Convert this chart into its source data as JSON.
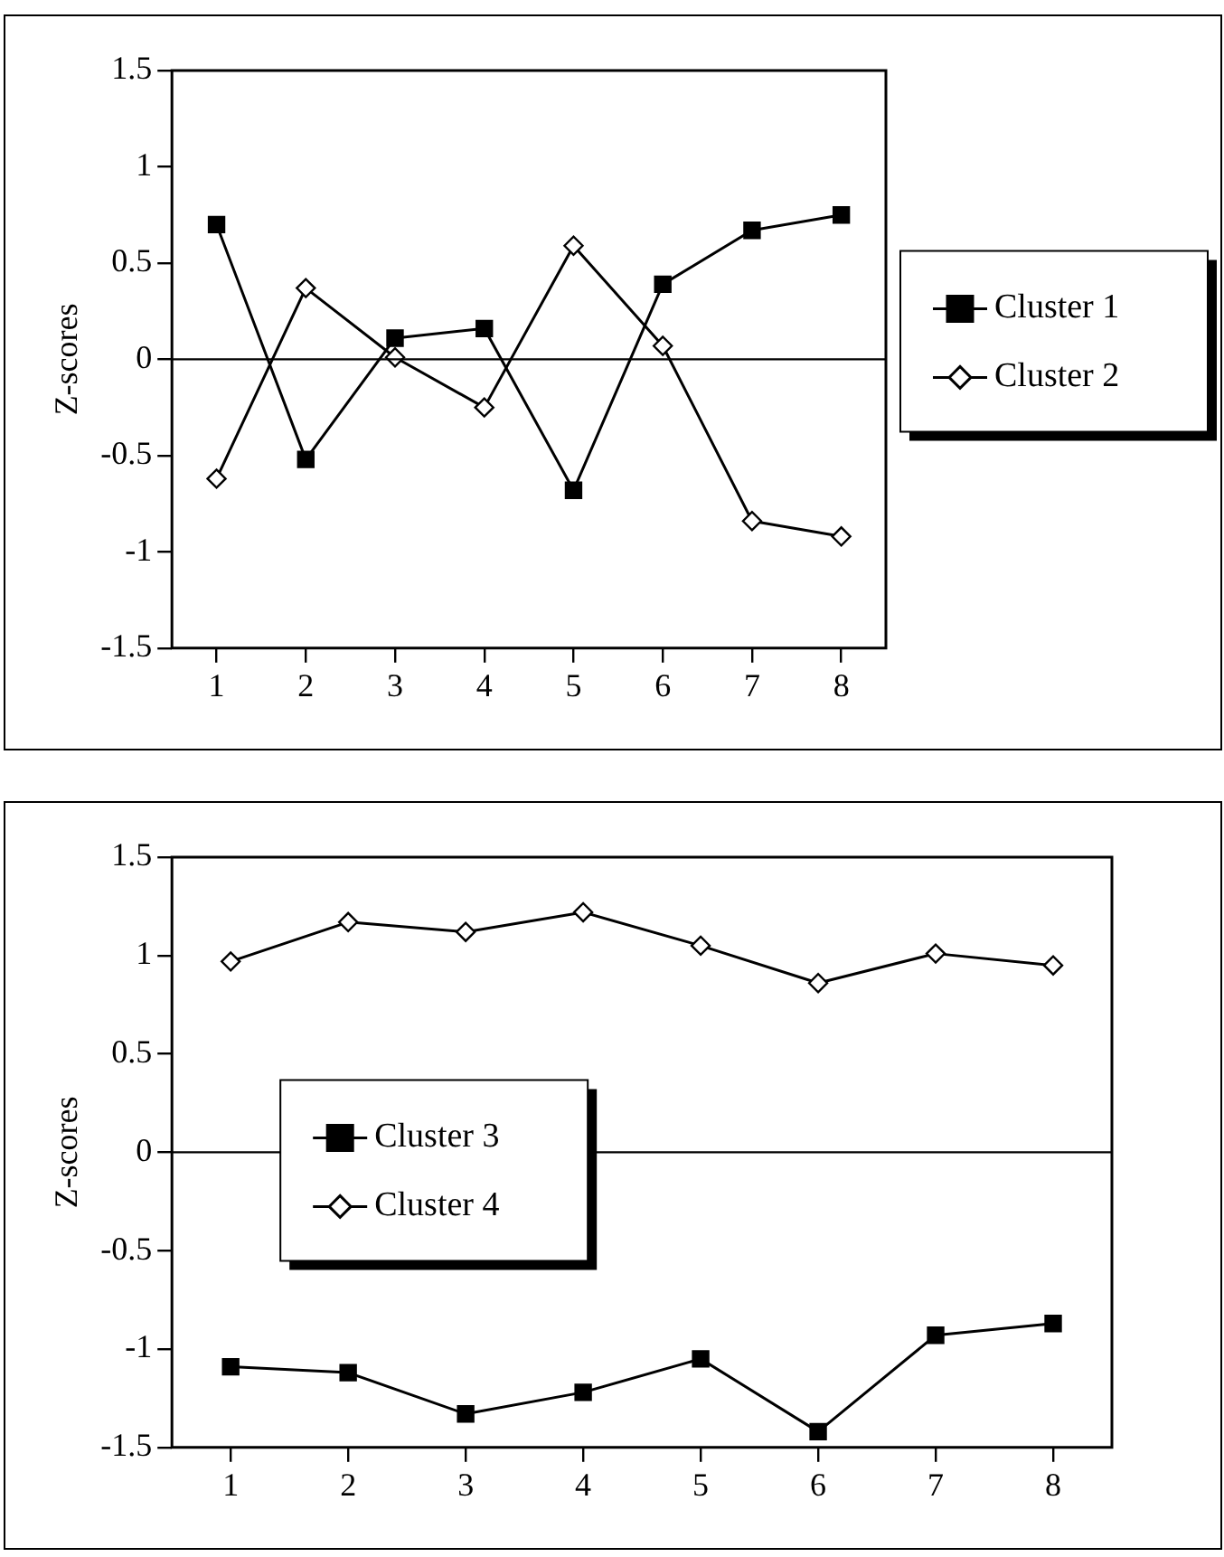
{
  "chart_data": [
    {
      "type": "line",
      "ylabel": "Z-scores",
      "categories": [
        "1",
        "2",
        "3",
        "4",
        "5",
        "6",
        "7",
        "8"
      ],
      "series": [
        {
          "name": "Cluster 1",
          "color": "#000000",
          "marker": "square",
          "values": [
            0.7,
            -0.52,
            0.11,
            0.16,
            -0.68,
            0.39,
            0.67,
            0.75
          ]
        },
        {
          "name": "Cluster 2",
          "color": "#000000",
          "marker": "diamond",
          "values": [
            -0.62,
            0.37,
            0.01,
            -0.25,
            0.59,
            0.07,
            -0.84,
            -0.92
          ]
        }
      ],
      "ylim": [
        -1.5,
        1.5
      ],
      "yticks": [
        -1.5,
        -1,
        -0.5,
        0,
        0.5,
        1,
        1.5
      ],
      "grid": false,
      "legend": "right",
      "ref_lines": [
        {
          "axis": "y",
          "value": 0,
          "color": "#000000"
        }
      ]
    },
    {
      "type": "line",
      "ylabel": "Z-scores",
      "categories": [
        "1",
        "2",
        "3",
        "4",
        "5",
        "6",
        "7",
        "8"
      ],
      "series": [
        {
          "name": "Cluster 3",
          "color": "#000000",
          "marker": "square",
          "values": [
            -1.09,
            -1.12,
            -1.33,
            -1.22,
            -1.05,
            -1.42,
            -0.93,
            -0.87
          ]
        },
        {
          "name": "Cluster 4",
          "color": "#000000",
          "marker": "diamond",
          "values": [
            0.97,
            1.17,
            1.12,
            1.22,
            1.05,
            0.86,
            1.01,
            0.95
          ]
        }
      ],
      "ylim": [
        -1.5,
        1.5
      ],
      "yticks": [
        -1.5,
        -1,
        -0.5,
        0,
        0.5,
        1,
        1.5
      ],
      "grid": false,
      "legend": "left",
      "ref_lines": [
        {
          "axis": "y",
          "value": 0,
          "color": "#000000"
        }
      ]
    }
  ]
}
